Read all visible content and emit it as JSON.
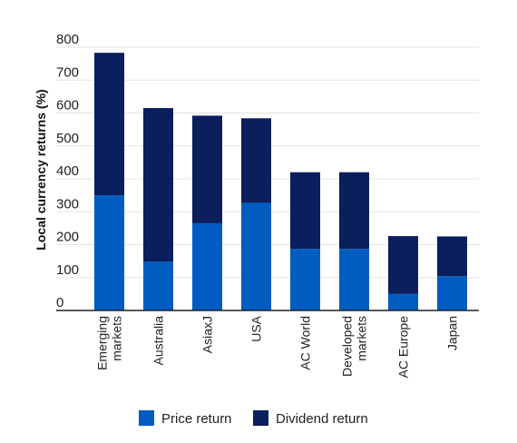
{
  "chart_data": {
    "type": "bar",
    "stacked": true,
    "ylabel": "Local currency returns (%)",
    "ylim": [
      0,
      800
    ],
    "yticks": [
      0,
      100,
      200,
      300,
      400,
      500,
      600,
      700,
      800
    ],
    "grid": true,
    "legend_position": "bottom",
    "categories": [
      [
        "Emerging",
        "markets"
      ],
      [
        "Australia"
      ],
      [
        "AsiaxJ"
      ],
      [
        "USA"
      ],
      [
        "AC World"
      ],
      [
        "Developed",
        "markets"
      ],
      [
        "AC Europe"
      ],
      [
        "Japan"
      ]
    ],
    "series": [
      {
        "name": "Price return",
        "color": "#005cc1",
        "values": [
          350,
          148,
          265,
          327,
          187,
          187,
          50,
          104
        ]
      },
      {
        "name": "Dividend return",
        "color": "#0a1f5c",
        "values": [
          433,
          467,
          327,
          257,
          233,
          233,
          176,
          121
        ]
      }
    ]
  }
}
